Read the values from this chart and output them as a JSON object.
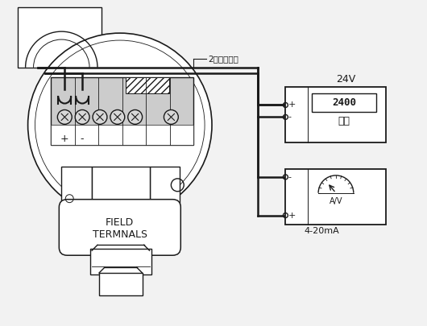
{
  "bg_color": "#f2f2f2",
  "line_color": "#1a1a1a",
  "white": "#ffffff",
  "gray_light": "#e0e0e0",
  "title_label": "2线不分极性",
  "power_label": "24V",
  "power_text1": "2400",
  "power_text2": "电源",
  "meter_label": "4-20mA",
  "meter_text": "A/V",
  "field_text1": "FIELD",
  "field_text2": "TERMNALS"
}
